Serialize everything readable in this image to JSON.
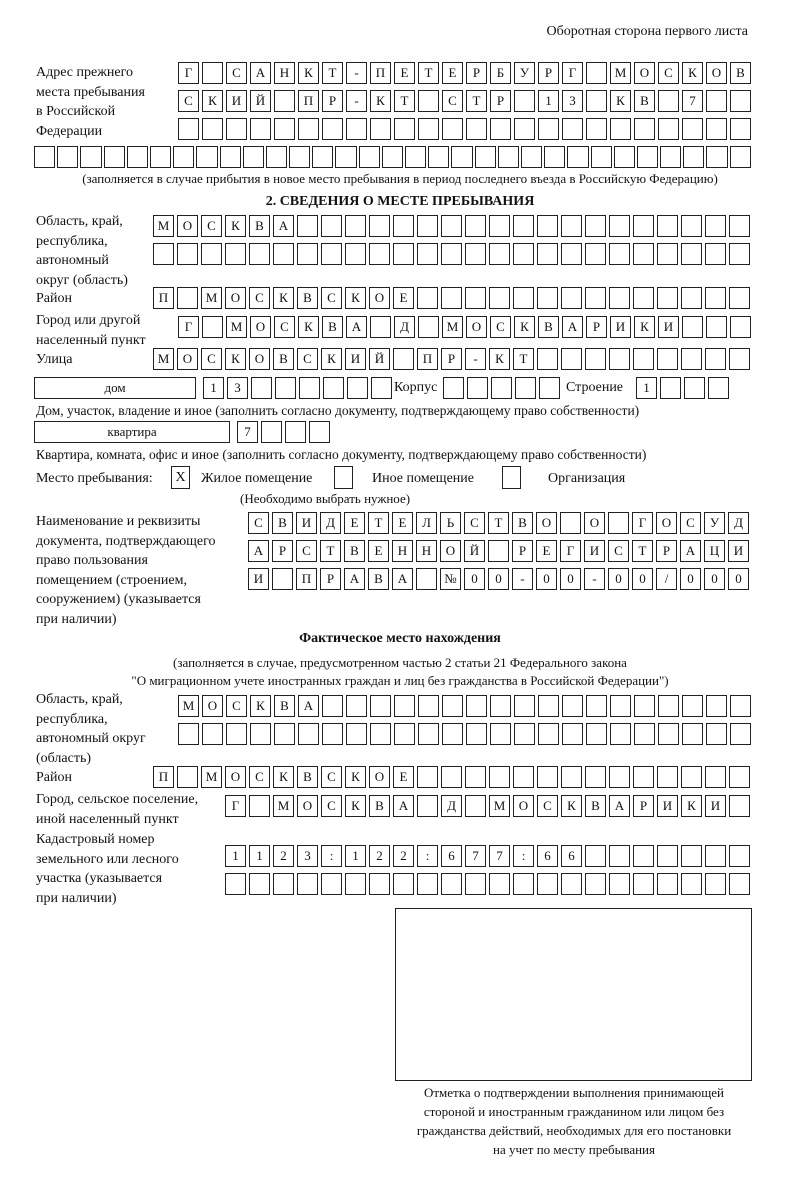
{
  "page_header": "Оборотная сторона первого листа",
  "prev_address": {
    "label": [
      "Адрес прежнего",
      "места пребывания",
      "в Российской",
      "Федерации"
    ],
    "rows": [
      "Г САНКТ-ПЕТЕРБУРГ МОСКОВ",
      "СКИЙ ПР-КТ СТР 13 КВ 7  ",
      "                        "
    ],
    "extra_row": "                               ",
    "note": "(заполняется в случае прибытия в новое место пребывания в период последнего въезда в Российскую Федерацию)"
  },
  "section2": {
    "title": "2. СВЕДЕНИЯ О МЕСТЕ ПРЕБЫВАНИЯ",
    "region_label": [
      "Область, край,",
      "республика,",
      "автономный",
      "округ (область)"
    ],
    "region_rows": [
      "МОСКВА                   ",
      "                         "
    ],
    "district_label": "Район",
    "district_row": "П МОСКВСКОЕ              ",
    "city_label": [
      "Город или другой",
      "населенный пункт"
    ],
    "city_row": "Г МОСКВА Д МОСКВАРИКИ   ",
    "street_label": "Улица",
    "street_row": "МОСКОВСКИЙ ПР-КТ         ",
    "house_type": "дом",
    "house_row": "13      ",
    "korpus_label": "Корпус",
    "korpus_row": "     ",
    "building_label": "Строение",
    "building_row": "1   ",
    "house_note": "Дом, участок, владение и иное (заполнить согласно документу, подтверждающему право собственности)",
    "flat_type": "квартира",
    "flat_row": "7   ",
    "flat_note": "Квартира, комната, офис и иное (заполнить согласно документу, подтверждающему право собственности)",
    "stay_place_label": "Место пребывания:",
    "options": [
      {
        "label": "Жилое помещение",
        "mark": "X"
      },
      {
        "label": "Иное помещение",
        "mark": ""
      },
      {
        "label": "Организация",
        "mark": ""
      }
    ],
    "options_note": "(Необходимо выбрать нужное)",
    "doc_label": [
      "Наименование и реквизиты",
      "документа, подтверждающего",
      "право пользования",
      "помещением (строением,",
      "сооружением) (указывается",
      "при наличии)"
    ],
    "doc_rows": [
      "СВИДЕТЕЛЬСТВО О ГОСУД",
      "АРСТВЕННОЙ РЕГИСТРАЦИ",
      "И ПРАВА №00-00-00/000"
    ]
  },
  "actual": {
    "title": "Фактическое место нахождения",
    "note": [
      "(заполняется в случае, предусмотренном частью 2 статьи 21 Федерального закона",
      "\"О миграционном учете иностранных граждан и лиц без гражданства в Российской Федерации\")"
    ],
    "region_label": [
      "Область, край,",
      "республика,",
      "автономный округ",
      "(область)"
    ],
    "region_rows": [
      "МОСКВА                  ",
      "                        "
    ],
    "district_label": "Район",
    "district_row": "П МОСКВСКОЕ              ",
    "city_label": [
      "Город, сельское поселение,",
      "иной населенный пункт"
    ],
    "city_row": "Г МОСКВА Д МОСКВАРИКИ ",
    "cadastral_label": [
      "Кадастровый номер",
      "земельного или лесного",
      "участка (указывается",
      "при наличии)"
    ],
    "cadastral_rows": [
      "1123:122:677:66       ",
      "                      "
    ]
  },
  "stamp_caption": [
    "Отметка о подтверждении выполнения принимающей",
    "стороной и иностранным гражданином или лицом без",
    "гражданства действий, необходимых для его постановки",
    "на учет по месту пребывания"
  ]
}
